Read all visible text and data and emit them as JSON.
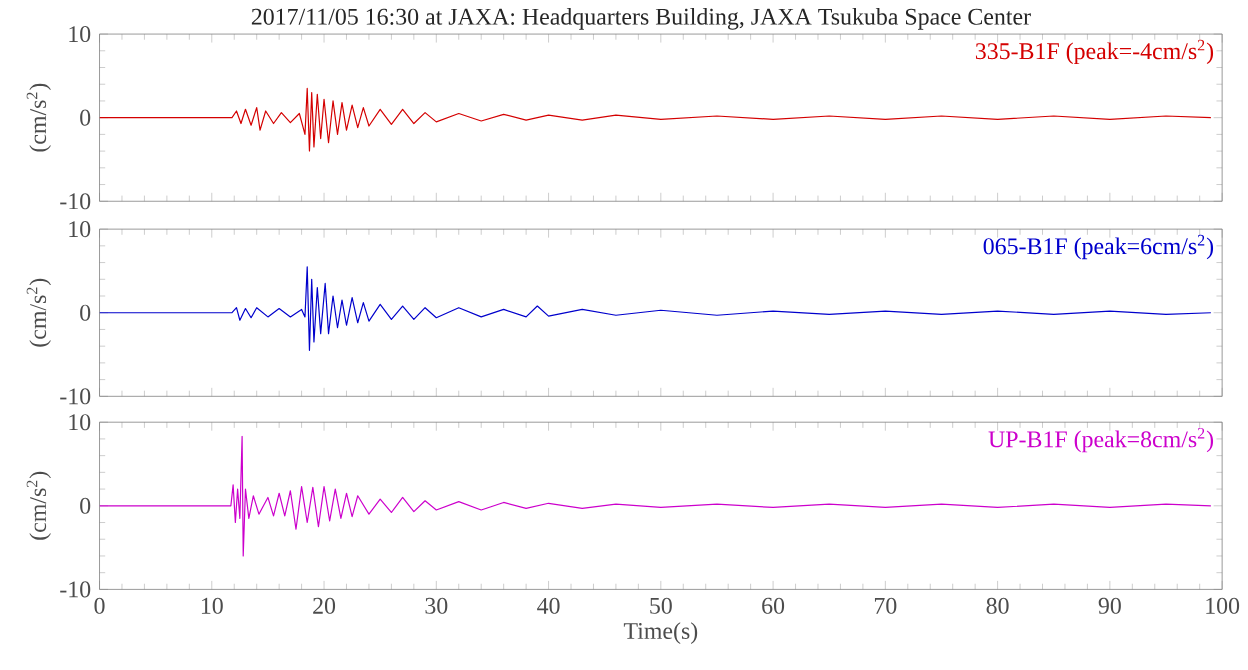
{
  "chart_data": [
    {
      "type": "line",
      "title": "2017/11/05 16:30 at JAXA: Headquarters Building, JAXA Tsukuba Space Center",
      "ylabel": "(cm/s$^{2}$)",
      "annotations": [
        "335-B1F (peak=-4cm/s$^{2}$)"
      ],
      "xlim": [
        0,
        100
      ],
      "xticks": [
        0,
        10,
        20,
        30,
        40,
        50,
        60,
        70,
        80,
        90,
        100
      ],
      "ylim": [
        -10,
        10
      ],
      "yticks": [
        -10,
        0,
        10
      ],
      "tick_labels": "y",
      "grid": false,
      "series": [
        {
          "color": "#d40000",
          "x": [
            0,
            11.8,
            12.2,
            12.6,
            13,
            13.5,
            14,
            14.3,
            14.8,
            15.5,
            16.2,
            17,
            17.8,
            18.3,
            18.5,
            18.7,
            18.9,
            19.1,
            19.4,
            19.7,
            20,
            20.4,
            20.8,
            21.2,
            21.6,
            22,
            22.5,
            23,
            23.5,
            24,
            25,
            26,
            27,
            28,
            29,
            30,
            32,
            34,
            36,
            38,
            40,
            43,
            46,
            50,
            55,
            60,
            65,
            70,
            75,
            80,
            85,
            90,
            95,
            99
          ],
          "values": [
            0,
            0,
            0.8,
            -0.7,
            1,
            -0.9,
            1.2,
            -1.5,
            0.8,
            -0.7,
            0.6,
            -0.6,
            0.5,
            -2,
            3.5,
            -4,
            3,
            -3.5,
            2.8,
            -2.5,
            2.2,
            -3,
            2,
            -2,
            1.8,
            -1.5,
            1.5,
            -1.2,
            1.2,
            -1,
            1,
            -0.8,
            1,
            -0.7,
            0.6,
            -0.5,
            0.5,
            -0.4,
            0.4,
            -0.3,
            0.3,
            -0.3,
            0.3,
            -0.2,
            0.2,
            -0.2,
            0.2,
            -0.2,
            0.2,
            -0.2,
            0.2,
            -0.2,
            0.2,
            0
          ]
        }
      ]
    },
    {
      "type": "line",
      "ylabel": "(cm/s$^{2}$)",
      "annotations": [
        "065-B1F (peak=6cm/s$^{2}$)"
      ],
      "xlim": [
        0,
        100
      ],
      "xticks": [
        0,
        10,
        20,
        30,
        40,
        50,
        60,
        70,
        80,
        90,
        100
      ],
      "ylim": [
        -10,
        10
      ],
      "yticks": [
        -10,
        0,
        10
      ],
      "tick_labels": "y",
      "grid": false,
      "series": [
        {
          "color": "#0000cc",
          "x": [
            0,
            11.8,
            12.2,
            12.5,
            13,
            13.5,
            14,
            15,
            16,
            17,
            18,
            18.3,
            18.5,
            18.7,
            18.9,
            19.1,
            19.4,
            19.7,
            20.1,
            20.4,
            20.8,
            21.2,
            21.6,
            22,
            22.5,
            23,
            23.5,
            24,
            25,
            26,
            27,
            28,
            29,
            30,
            32,
            34,
            36,
            38,
            39,
            40,
            43,
            46,
            50,
            55,
            60,
            65,
            70,
            75,
            80,
            85,
            90,
            95,
            99
          ],
          "values": [
            0,
            0,
            0.6,
            -0.9,
            0.5,
            -0.6,
            0.6,
            -0.5,
            0.5,
            -0.5,
            0.4,
            -0.5,
            5.5,
            -4.5,
            4,
            -3.5,
            3,
            -2.5,
            3.5,
            -2.5,
            2,
            -1.8,
            1.5,
            -1.5,
            1.8,
            -1.2,
            1.2,
            -1,
            1,
            -0.8,
            0.8,
            -0.8,
            0.6,
            -0.6,
            0.6,
            -0.5,
            0.4,
            -0.5,
            0.8,
            -0.4,
            0.4,
            -0.3,
            0.3,
            -0.3,
            0.2,
            -0.2,
            0.2,
            -0.2,
            0.2,
            -0.2,
            0.2,
            -0.2,
            0
          ]
        }
      ]
    },
    {
      "type": "line",
      "xlabel": "Time(s)",
      "ylabel": "(cm/s$^{2}$)",
      "annotations": [
        "UP-B1F (peak=8cm/s$^{2}$)"
      ],
      "xlim": [
        0,
        100
      ],
      "xticks": [
        0,
        10,
        20,
        30,
        40,
        50,
        60,
        70,
        80,
        90,
        100
      ],
      "ylim": [
        -10,
        10
      ],
      "yticks": [
        -10,
        0,
        10
      ],
      "grid": false,
      "series": [
        {
          "color": "#cc00cc",
          "x": [
            0,
            11.7,
            11.9,
            12.1,
            12.3,
            12.5,
            12.7,
            12.8,
            13,
            13.3,
            13.7,
            14.2,
            15,
            15.5,
            16,
            16.5,
            17,
            17.5,
            18,
            18.5,
            19,
            19.5,
            20,
            20.5,
            21,
            21.5,
            22,
            22.5,
            23,
            24,
            25,
            26,
            27,
            28,
            29,
            30,
            32,
            34,
            36,
            38,
            40,
            43,
            46,
            50,
            55,
            60,
            65,
            70,
            75,
            80,
            85,
            90,
            95,
            99
          ],
          "values": [
            0,
            0,
            2.5,
            -2,
            2,
            -1.5,
            8.3,
            -6,
            2,
            -1.5,
            1.2,
            -1,
            1,
            -1.2,
            1.5,
            -1.2,
            1.8,
            -2.8,
            2.3,
            -2,
            2.2,
            -2.5,
            2.3,
            -1.8,
            2,
            -1.5,
            1.5,
            -1.3,
            1.2,
            -1,
            0.8,
            -0.8,
            1,
            -0.7,
            0.6,
            -0.5,
            0.5,
            -0.5,
            0.4,
            -0.3,
            0.3,
            -0.3,
            0.2,
            -0.2,
            0.2,
            -0.2,
            0.2,
            -0.2,
            0.2,
            -0.2,
            0.2,
            -0.2,
            0.2,
            0
          ]
        }
      ]
    }
  ]
}
